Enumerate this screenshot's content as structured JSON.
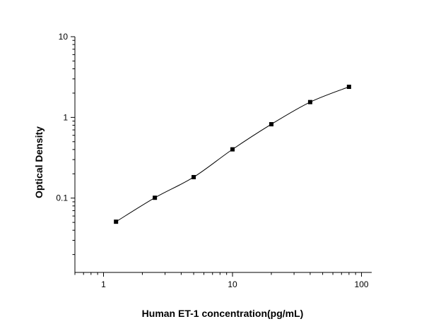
{
  "chart_data": {
    "type": "scatter",
    "title": "",
    "xlabel": "Human ET-1 concentration(pg/mL)",
    "ylabel": "Optical Density",
    "x_scale": "log",
    "y_scale": "log",
    "xlim": [
      0.6,
      120
    ],
    "ylim": [
      0.012,
      10
    ],
    "x_ticks": [
      1,
      10,
      100
    ],
    "x_tick_labels": [
      "1",
      "10",
      "100"
    ],
    "y_ticks": [
      0.1,
      1,
      10
    ],
    "y_tick_labels": [
      "0.1",
      "1",
      "10"
    ],
    "grid": false,
    "legend": "none",
    "series": [
      {
        "x": [
          1.25,
          2.5,
          5,
          10,
          20,
          40,
          80
        ],
        "y": [
          0.051,
          0.101,
          0.182,
          0.402,
          0.823,
          1.548,
          2.393
        ],
        "marker": "square",
        "color": "#000000",
        "fit_curve": true
      }
    ]
  }
}
